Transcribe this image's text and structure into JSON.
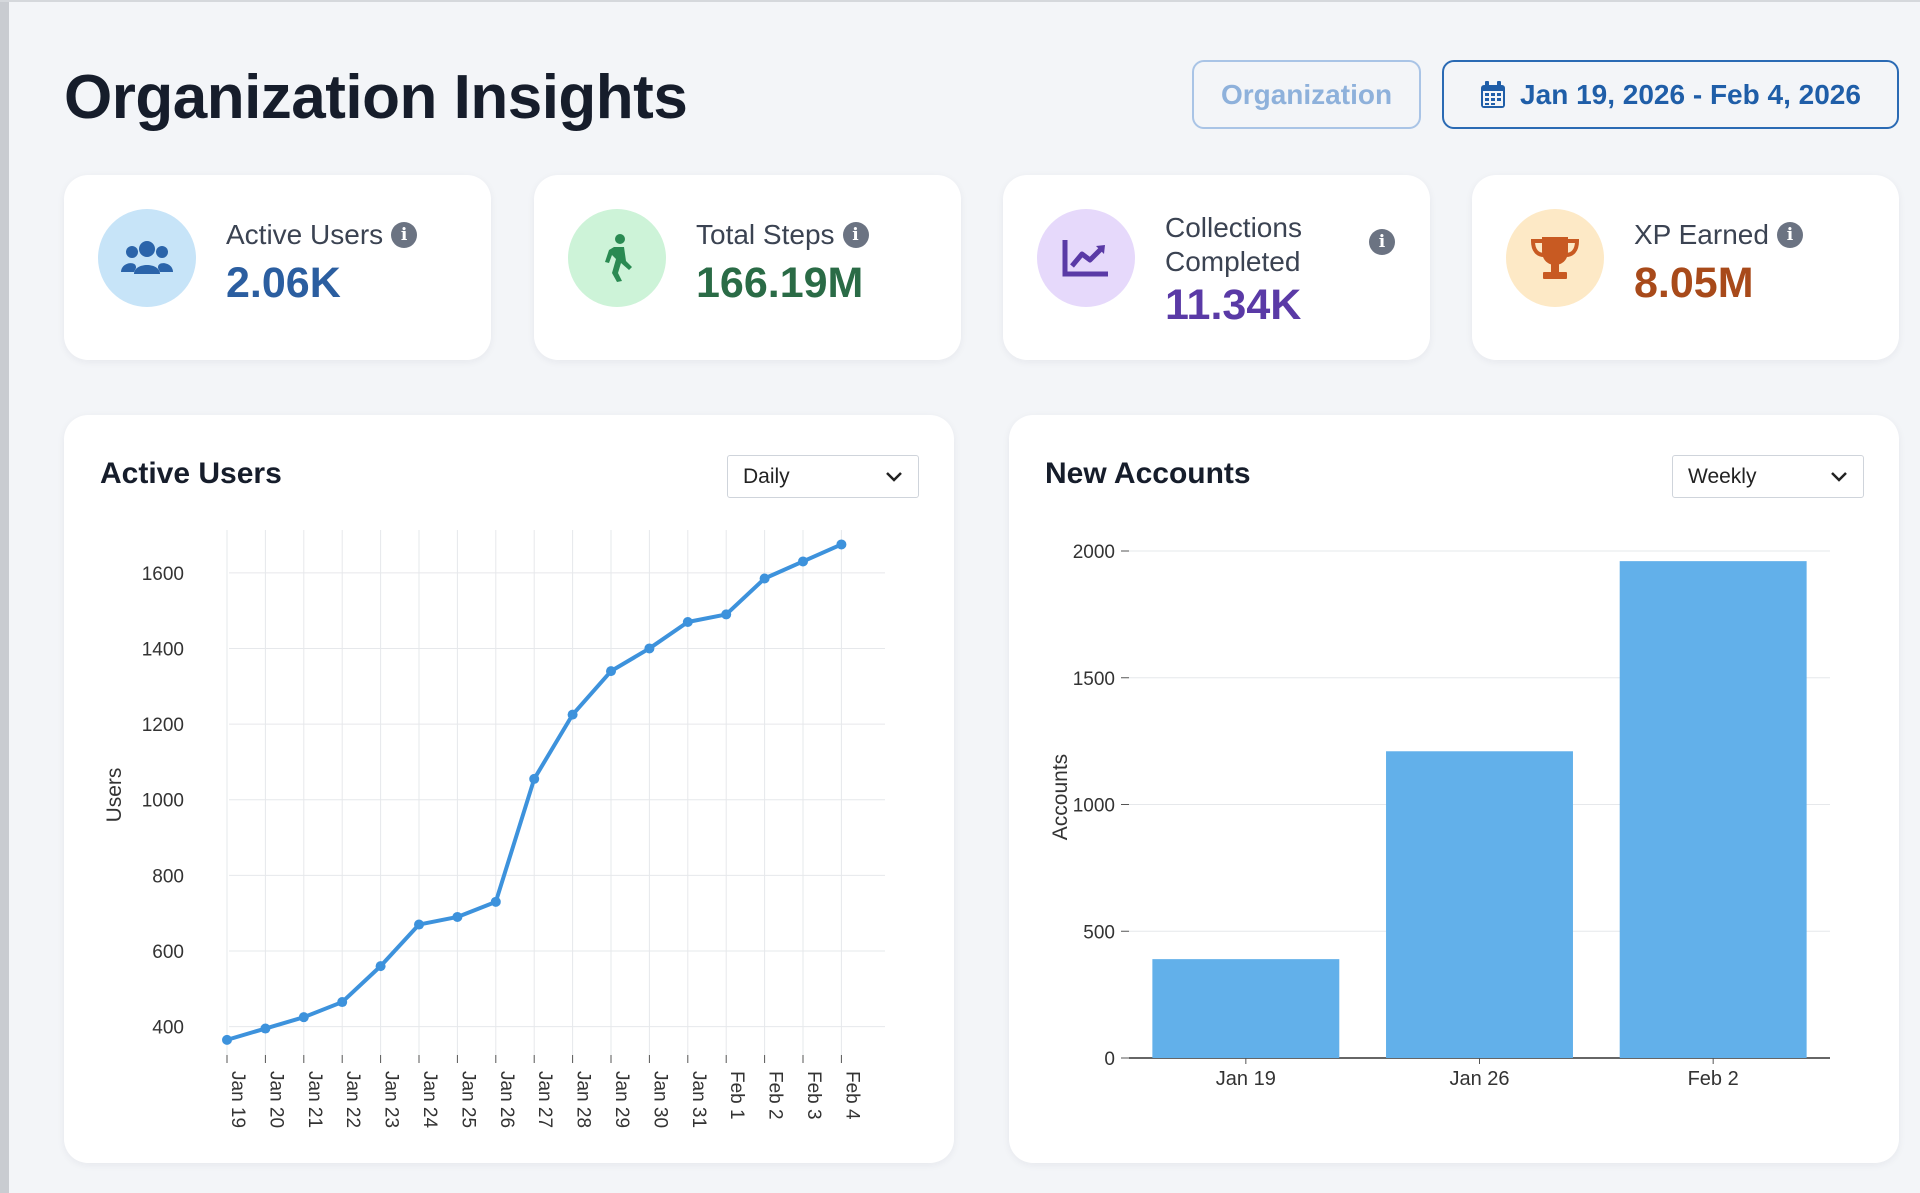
{
  "header": {
    "title": "Organization Insights",
    "org_button": "Organization",
    "date_range": "Jan 19, 2026 - Feb 4, 2026",
    "date_icon": "calendar-icon"
  },
  "stats": [
    {
      "label": "Active Users",
      "value": "2.06K",
      "icon": "users-icon",
      "color": "#2b5ea0",
      "bg": "#c7e4f8"
    },
    {
      "label": "Total Steps",
      "value": "166.19M",
      "icon": "walking-icon",
      "color": "#2a6b46",
      "bg": "#cdf3d8"
    },
    {
      "label": "Collections Completed",
      "value": "11.34K",
      "icon": "chart-line-icon",
      "color": "#5a3aa6",
      "bg": "#e6d9fb"
    },
    {
      "label": "XP Earned",
      "value": "8.05M",
      "icon": "trophy-icon",
      "color": "#a84a1a",
      "bg": "#fde9c6"
    }
  ],
  "panels": {
    "active_users": {
      "title": "Active Users",
      "interval": "Daily"
    },
    "new_accounts": {
      "title": "New Accounts",
      "interval": "Weekly"
    }
  },
  "chart_data": [
    {
      "type": "line",
      "title": "Active Users",
      "ylabel": "Users",
      "xlabel": "",
      "x": [
        "Jan 19",
        "Jan 20",
        "Jan 21",
        "Jan 22",
        "Jan 23",
        "Jan 24",
        "Jan 25",
        "Jan 26",
        "Jan 27",
        "Jan 28",
        "Jan 29",
        "Jan 30",
        "Jan 31",
        "Feb 1",
        "Feb 2",
        "Feb 3",
        "Feb 4"
      ],
      "series": [
        {
          "values": [
            365,
            395,
            425,
            465,
            560,
            670,
            690,
            730,
            1055,
            1225,
            1340,
            1400,
            1470,
            1490,
            1585,
            1630,
            1675
          ]
        }
      ],
      "yticks": [
        400,
        600,
        800,
        1000,
        1200,
        1400,
        1600
      ],
      "ylim": [
        325,
        1700
      ],
      "grid": true,
      "color": "#3d92dc"
    },
    {
      "type": "bar",
      "title": "New Accounts",
      "ylabel": "Accounts",
      "xlabel": "",
      "categories": [
        "Jan 19",
        "Jan 26",
        "Feb 2"
      ],
      "values": [
        390,
        1210,
        1960
      ],
      "yticks": [
        0,
        500,
        1000,
        1500,
        2000
      ],
      "ylim": [
        0,
        2000
      ],
      "grid": true,
      "color": "#62b0ea"
    }
  ]
}
